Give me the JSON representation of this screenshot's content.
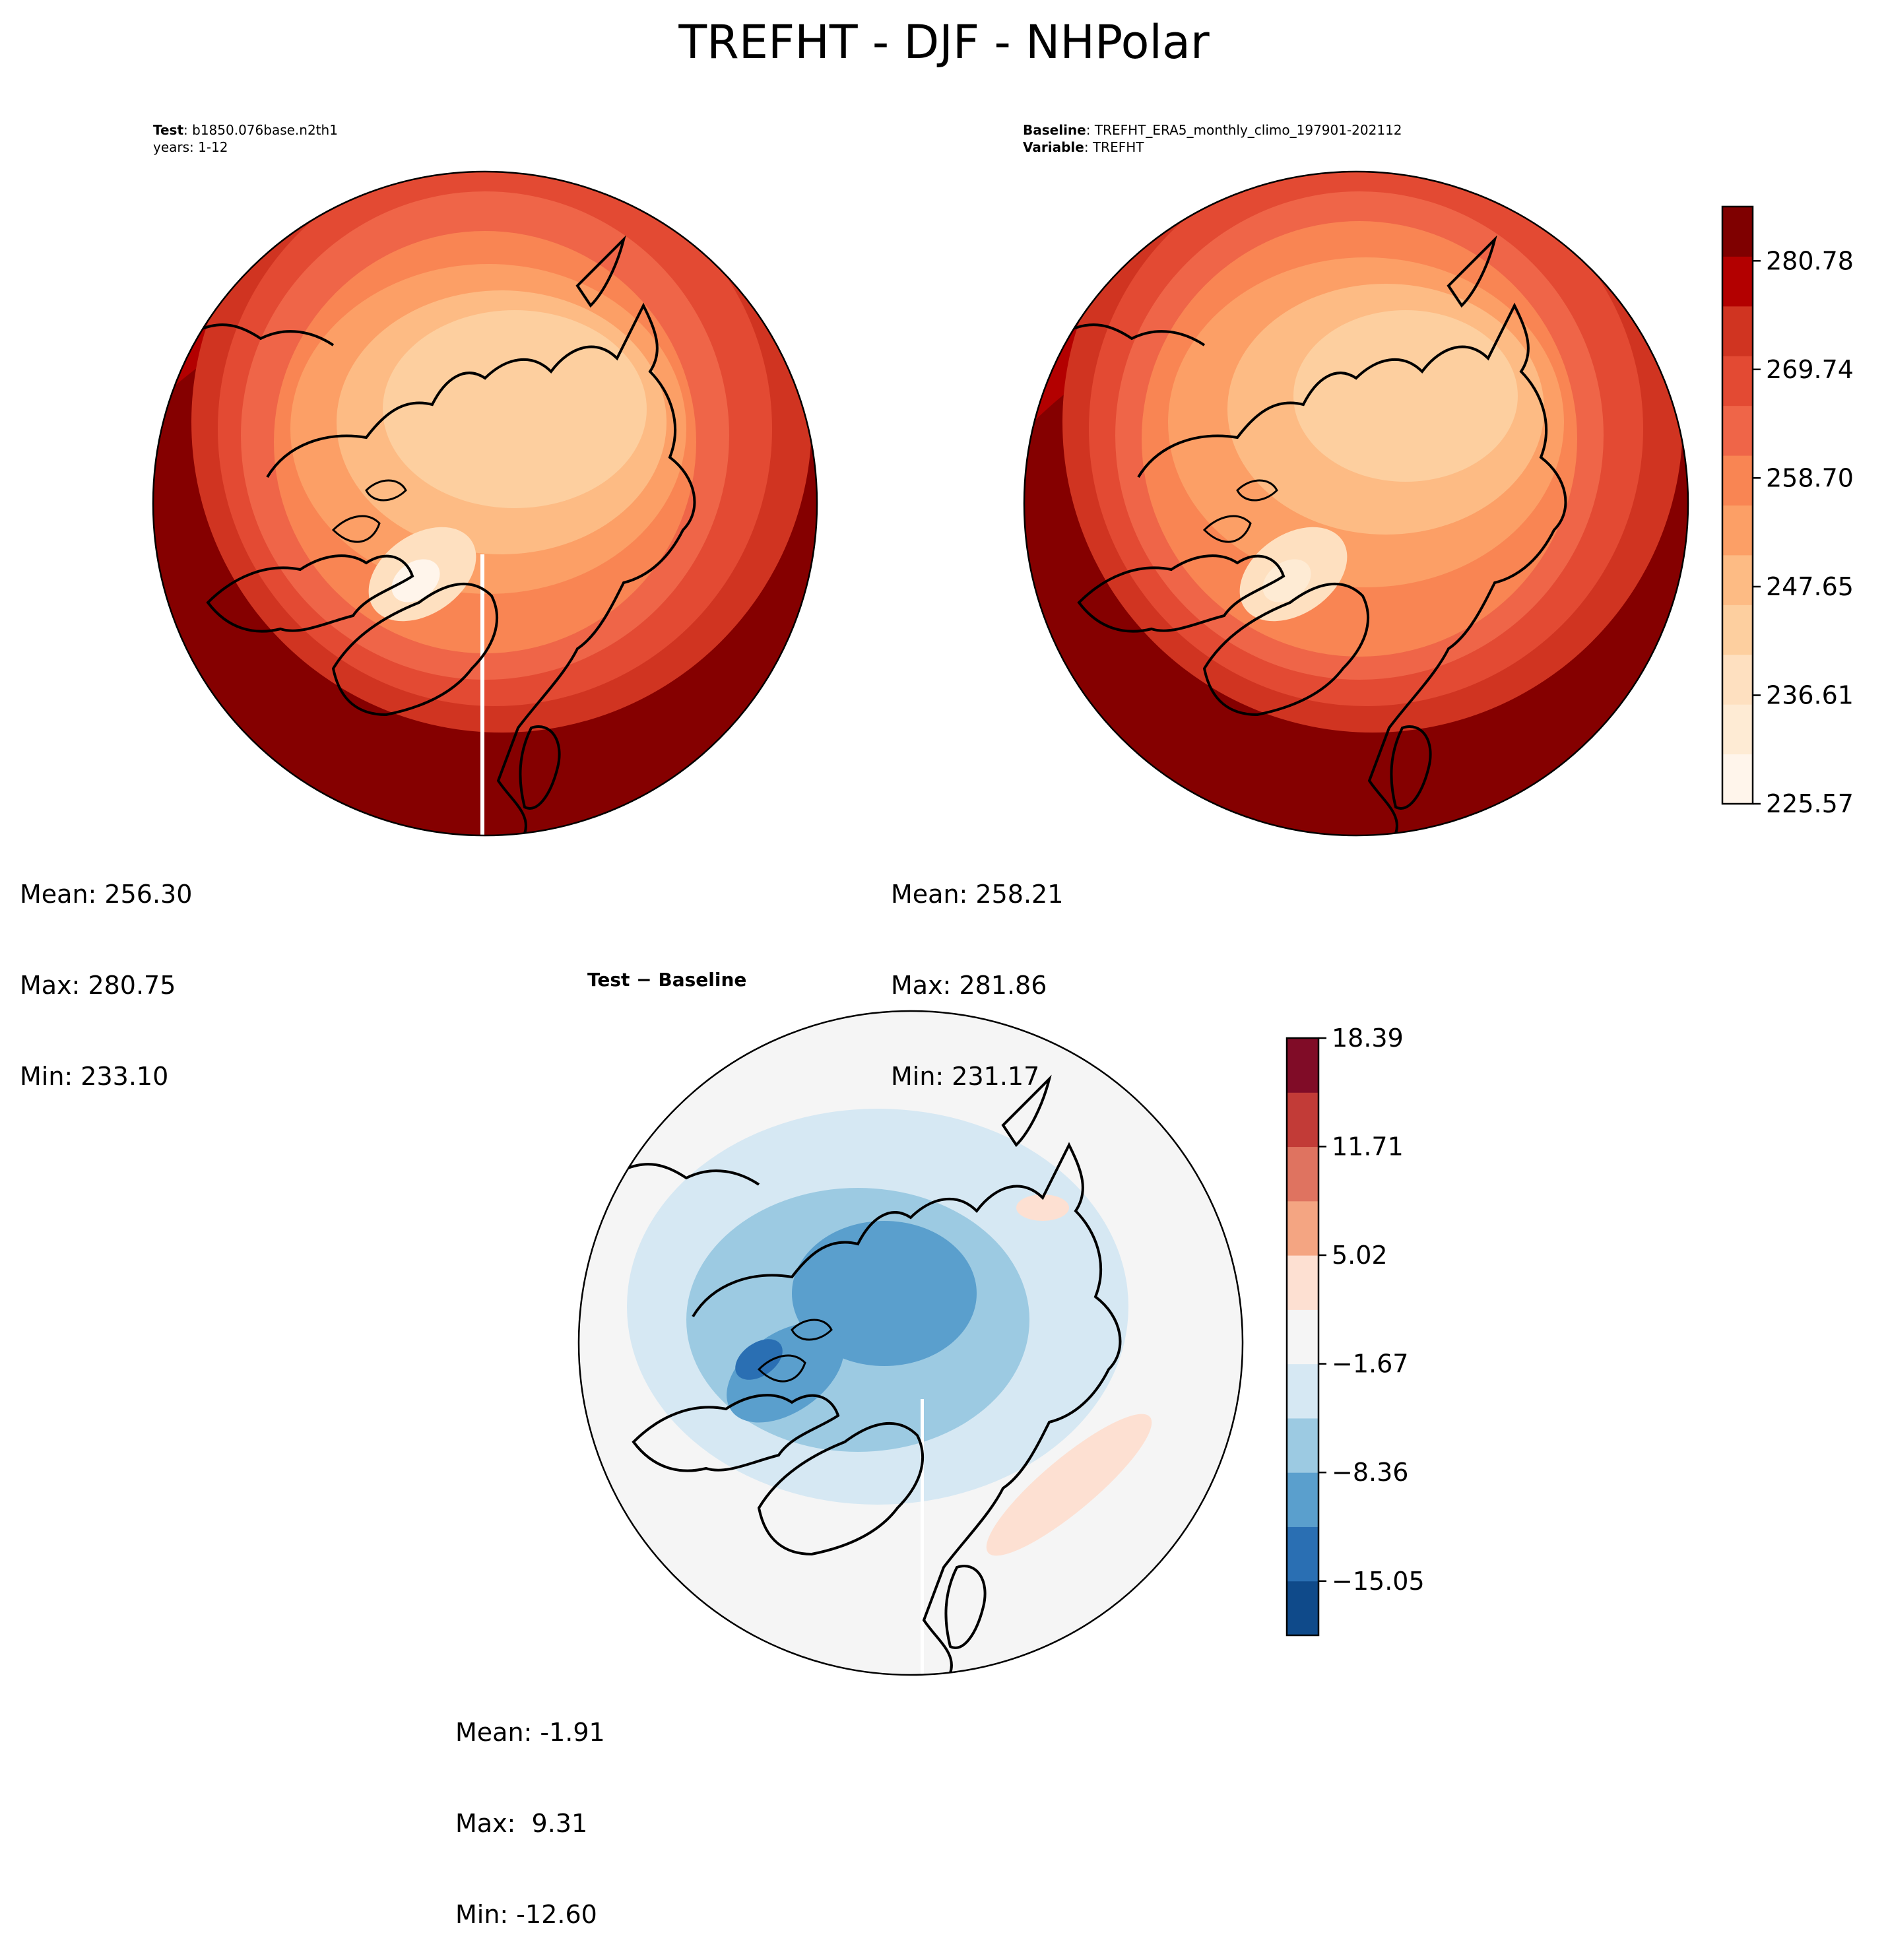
{
  "figure": {
    "title": "TREFHT - DJF - NHPolar",
    "panels": {
      "test": {
        "label": "Test",
        "case_name": "b1850.076base.n2th1",
        "years": "years: 1-12",
        "stats": {
          "mean": "Mean: 256.30",
          "max": "Max: 280.75",
          "min": "Min: 233.10"
        }
      },
      "baseline": {
        "label": "Baseline",
        "case_name": "TREFHT_ERA5_monthly_climo_197901-202112",
        "variable_label": "Variable",
        "variable": "TREFHT",
        "stats": {
          "mean": "Mean: 258.21",
          "max": "Max: 281.86",
          "min": "Min: 231.17"
        }
      },
      "difference": {
        "title": "Test − Baseline",
        "stats": {
          "mean": "Mean: -1.91",
          "max": "Max:  9.31",
          "min": "Min: -12.60"
        }
      }
    }
  },
  "chart_data": [
    {
      "type": "heatmap",
      "title": "Test",
      "projection": "north-polar-stereographic",
      "variable": "TREFHT",
      "season": "DJF",
      "region": "NHPolar",
      "mean": 256.3,
      "max": 280.75,
      "min": 233.1,
      "colormap": "Reds",
      "color_levels": [
        225.57,
        231.09,
        236.61,
        242.13,
        247.65,
        253.18,
        258.7,
        264.22,
        269.74,
        275.26,
        280.78,
        286.3
      ]
    },
    {
      "type": "heatmap",
      "title": "Baseline",
      "projection": "north-polar-stereographic",
      "variable": "TREFHT",
      "mean": 258.21,
      "max": 281.86,
      "min": 231.17,
      "colormap": "Reds",
      "colorbar": {
        "tick_labels": [
          "280.78",
          "269.74",
          "258.70",
          "247.65",
          "236.61",
          "225.57"
        ],
        "tick_values": [
          280.78,
          269.74,
          258.7,
          247.65,
          236.61,
          225.57
        ],
        "range": [
          225.57,
          286.3
        ]
      }
    },
    {
      "type": "heatmap",
      "title": "Test − Baseline",
      "projection": "north-polar-stereographic",
      "mean": -1.91,
      "max": 9.31,
      "min": -12.6,
      "colormap": "RdBu_r",
      "colorbar": {
        "tick_labels": [
          "18.39",
          "11.71",
          "5.02",
          "−1.67",
          "−8.36",
          "−15.05"
        ],
        "tick_values": [
          18.39,
          11.71,
          5.02,
          -1.67,
          -8.36,
          -15.05
        ],
        "range": [
          -18.39,
          18.39
        ]
      }
    }
  ],
  "colors": {
    "reds": [
      "#fff5eb",
      "#feebd4",
      "#fee0c0",
      "#fdcf9f",
      "#fdbb84",
      "#fc9f66",
      "#f98553",
      "#ef6548",
      "#e34a33",
      "#d03421",
      "#b30000",
      "#7f0000"
    ],
    "diverging": [
      "#0f4a8a",
      "#2a6fb3",
      "#5a9fcd",
      "#9ccae2",
      "#d6e8f3",
      "#f5f5f5",
      "#fde0d2",
      "#f4a582",
      "#df7360",
      "#c23b37",
      "#800c27"
    ]
  }
}
